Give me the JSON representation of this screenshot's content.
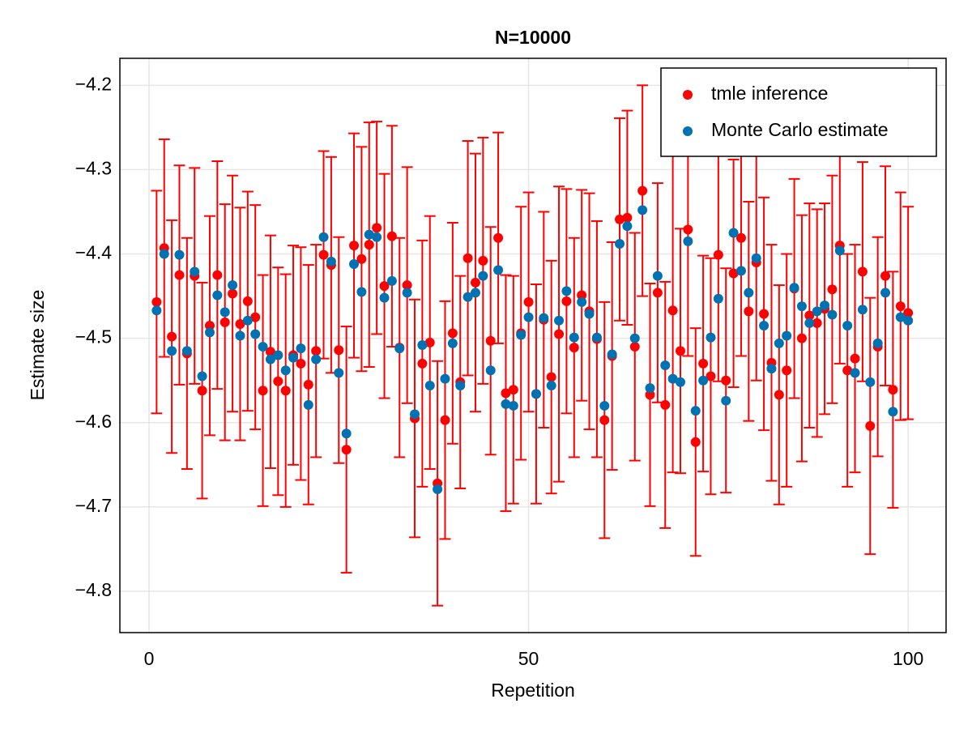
{
  "chart_data": {
    "type": "scatter",
    "title": "N=10000",
    "x_label": "Repetition",
    "y_label": "Estimate size",
    "x": [
      1,
      2,
      3,
      4,
      5,
      6,
      7,
      8,
      9,
      10,
      11,
      12,
      13,
      14,
      15,
      16,
      17,
      18,
      19,
      20,
      21,
      22,
      23,
      24,
      25,
      26,
      27,
      28,
      29,
      30,
      31,
      32,
      33,
      34,
      35,
      36,
      37,
      38,
      39,
      40,
      41,
      42,
      43,
      44,
      45,
      46,
      47,
      48,
      49,
      50,
      51,
      52,
      53,
      54,
      55,
      56,
      57,
      58,
      59,
      60,
      61,
      62,
      63,
      64,
      65,
      66,
      67,
      68,
      69,
      70,
      71,
      72,
      73,
      74,
      75,
      76,
      77,
      78,
      79,
      80,
      81,
      82,
      83,
      84,
      85,
      86,
      87,
      88,
      89,
      90,
      91,
      92,
      93,
      94,
      95,
      96,
      97,
      98,
      99,
      100
    ],
    "series": [
      {
        "name": "tmle inference",
        "color": "#ff0000",
        "values": [
          -4.457,
          -4.393,
          -4.498,
          -4.425,
          -4.518,
          -4.426,
          -4.562,
          -4.485,
          -4.425,
          -4.481,
          -4.447,
          -4.483,
          -4.456,
          -4.475,
          -4.562,
          -4.516,
          -4.551,
          -4.562,
          -4.52,
          -4.53,
          -4.555,
          -4.515,
          -4.401,
          -4.413,
          -4.514,
          -4.632,
          -4.39,
          -4.406,
          -4.389,
          -4.369,
          -4.438,
          -4.379,
          -4.511,
          -4.437,
          -4.595,
          -4.53,
          -4.505,
          -4.672,
          -4.597,
          -4.494,
          -4.552,
          -4.405,
          -4.434,
          -4.408,
          -4.503,
          -4.381,
          -4.565,
          -4.561,
          -4.494,
          -4.457,
          -4.566,
          -4.478,
          -4.546,
          -4.495,
          -4.456,
          -4.511,
          -4.449,
          -4.468,
          -4.501,
          -4.597,
          -4.521,
          -4.359,
          -4.357,
          -4.51,
          -4.325,
          -4.567,
          -4.446,
          -4.579,
          -4.467,
          -4.515,
          -4.371,
          -4.623,
          -4.53,
          -4.545,
          -4.401,
          -4.55,
          -4.423,
          -4.381,
          -4.468,
          -4.41,
          -4.471,
          -4.529,
          -4.567,
          -4.538,
          -4.441,
          -4.5,
          -4.473,
          -4.482,
          -4.465,
          -4.442,
          -4.39,
          -4.538,
          -4.524,
          -4.421,
          -4.604,
          -4.51,
          -4.426,
          -4.561,
          -4.462,
          -4.47
        ],
        "errors": [
          0.132,
          0.129,
          0.138,
          0.13,
          0.137,
          0.128,
          0.128,
          0.13,
          0.135,
          0.14,
          0.14,
          0.138,
          0.13,
          0.133,
          0.137,
          0.138,
          0.135,
          0.138,
          0.13,
          0.138,
          0.142,
          0.126,
          0.123,
          0.128,
          0.134,
          0.146,
          0.133,
          0.133,
          0.145,
          0.126,
          0.133,
          0.131,
          0.13,
          0.14,
          0.141,
          0.146,
          0.15,
          0.145,
          0.141,
          0.131,
          0.126,
          0.139,
          0.153,
          0.146,
          0.135,
          0.125,
          0.14,
          0.135,
          0.15,
          0.13,
          0.13,
          0.128,
          0.138,
          0.175,
          0.133,
          0.13,
          0.125,
          0.14,
          0.14,
          0.14,
          0.135,
          0.12,
          0.127,
          0.135,
          0.125,
          0.132,
          0.13,
          0.146,
          0.192,
          0.145,
          0.15,
          0.135,
          0.128,
          0.14,
          0.15,
          0.133,
          0.135,
          0.14,
          0.13,
          0.14,
          0.138,
          0.14,
          0.13,
          0.138,
          0.13,
          0.146,
          0.133,
          0.135,
          0.125,
          0.135,
          0.14,
          0.138,
          0.135,
          0.13,
          0.152,
          0.13,
          0.13,
          0.14,
          0.135,
          0.126
        ]
      },
      {
        "name": "Monte Carlo estimate",
        "color": "#0072b2",
        "values": [
          -4.467,
          -4.4,
          -4.515,
          -4.401,
          -4.515,
          -4.421,
          -4.545,
          -4.493,
          -4.449,
          -4.469,
          -4.437,
          -4.497,
          -4.479,
          -4.495,
          -4.51,
          -4.525,
          -4.52,
          -4.538,
          -4.523,
          -4.512,
          -4.579,
          -4.525,
          -4.38,
          -4.409,
          -4.541,
          -4.613,
          -4.412,
          -4.445,
          -4.377,
          -4.38,
          -4.452,
          -4.432,
          -4.512,
          -4.446,
          -4.59,
          -4.508,
          -4.556,
          -4.679,
          -4.548,
          -4.506,
          -4.556,
          -4.451,
          -4.446,
          -4.426,
          -4.538,
          -4.419,
          -4.578,
          -4.58,
          -4.496,
          -4.475,
          -4.566,
          -4.476,
          -4.556,
          -4.479,
          -4.444,
          -4.499,
          -4.457,
          -4.471,
          -4.499,
          -4.58,
          -4.519,
          -4.388,
          -4.367,
          -4.5,
          -4.348,
          -4.559,
          -4.426,
          -4.532,
          -4.548,
          -4.552,
          -4.385,
          -4.586,
          -4.55,
          -4.499,
          -4.453,
          -4.574,
          -4.375,
          -4.42,
          -4.446,
          -4.405,
          -4.485,
          -4.536,
          -4.506,
          -4.497,
          -4.44,
          -4.462,
          -4.482,
          -4.468,
          -4.461,
          -4.472,
          -4.396,
          -4.485,
          -4.541,
          -4.466,
          -4.552,
          -4.506,
          -4.446,
          -4.587,
          -4.475,
          -4.479
        ]
      }
    ],
    "xlim": [
      -3.84,
      105
    ],
    "xticks": [
      0,
      50,
      100
    ],
    "ylim": [
      -4.849,
      -4.168
    ],
    "yticks": [
      {
        "value": -4.2,
        "label": "−4.2"
      },
      {
        "value": -4.3,
        "label": "−4.3"
      },
      {
        "value": -4.4,
        "label": "−4.4"
      },
      {
        "value": -4.5,
        "label": "−4.5"
      },
      {
        "value": -4.6,
        "label": "−4.6"
      },
      {
        "value": -4.7,
        "label": "−4.7"
      },
      {
        "value": -4.8,
        "label": "−4.8"
      }
    ],
    "grid": true,
    "legend": "top-right"
  }
}
